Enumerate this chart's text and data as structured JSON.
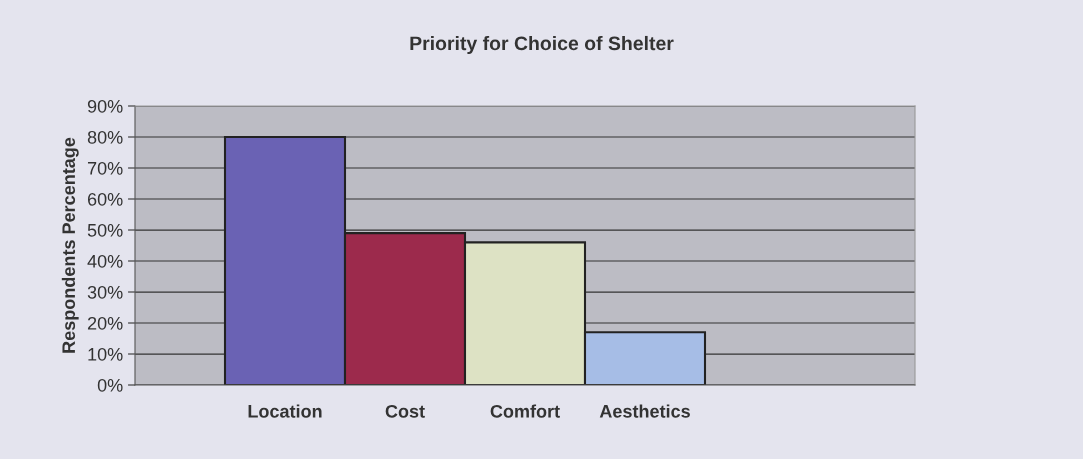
{
  "chart_data": {
    "type": "bar",
    "title": "Priority for Choice of Shelter",
    "ylabel": "Respondents Percentage",
    "categories": [
      "Location",
      "Cost",
      "Comfort",
      "Aesthetics"
    ],
    "values": [
      80,
      49,
      46,
      17
    ],
    "colors": [
      "#6a62b4",
      "#9c2a4c",
      "#dde2c4",
      "#a6bde6"
    ],
    "ylim": [
      0,
      90
    ],
    "yticks": [
      {
        "value": 0,
        "label": "0%"
      },
      {
        "value": 10,
        "label": "10%"
      },
      {
        "value": 20,
        "label": "20%"
      },
      {
        "value": 30,
        "label": "30%"
      },
      {
        "value": 40,
        "label": "40%"
      },
      {
        "value": 50,
        "label": "50%"
      },
      {
        "value": 60,
        "label": "60%"
      },
      {
        "value": 70,
        "label": "70%"
      },
      {
        "value": 80,
        "label": "80%"
      },
      {
        "value": 90,
        "label": "90%"
      }
    ],
    "grid": "y",
    "legend": false
  }
}
